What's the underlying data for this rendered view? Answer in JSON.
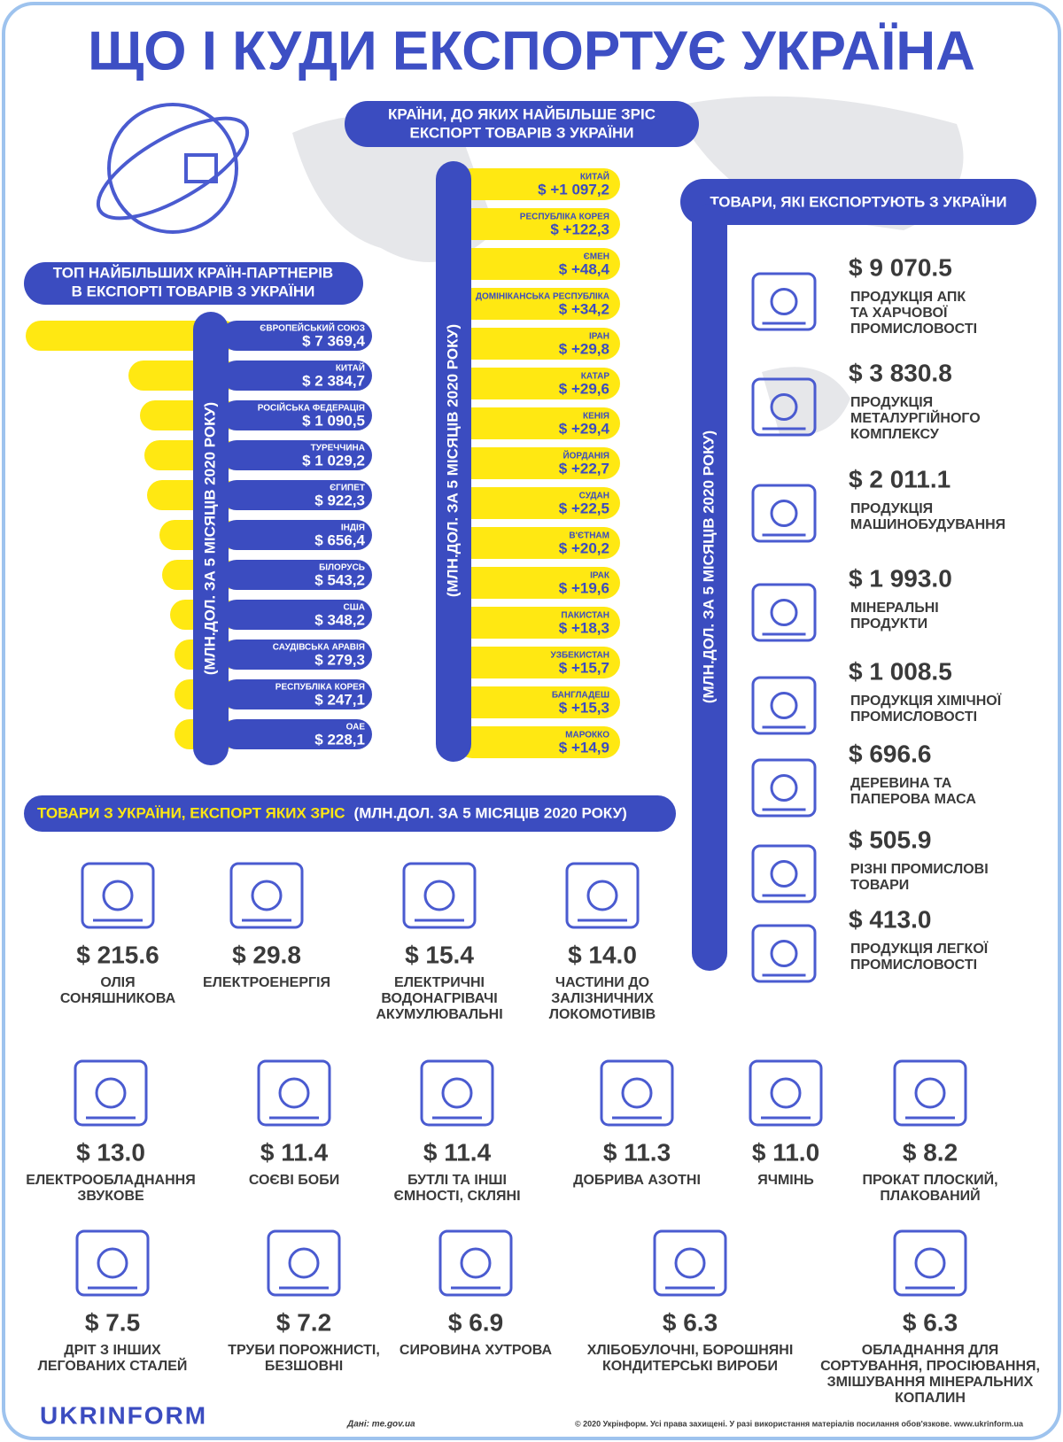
{
  "title": "ЩО І КУДИ ЕКСПОРТУЄ УКРАЇНА",
  "partners": {
    "heading": [
      "ТОП НАЙБІЛЬШИХ КРАЇН-ПАРТНЕРІВ",
      "В ЕКСПОРТІ ТОВАРІВ З УКРАЇНИ"
    ],
    "unit": "(МЛН.ДОЛ. ЗА 5 МІСЯЦІВ 2020 РОКУ)",
    "rows": [
      {
        "country": "ЄВРОПЕЙСЬКИЙ СОЮЗ",
        "value": "$ 7 369,4"
      },
      {
        "country": "КИТАЙ",
        "value": "$ 2 384,7"
      },
      {
        "country": "РОСІЙСЬКА ФЕДЕРАЦІЯ",
        "value": "$ 1 090,5"
      },
      {
        "country": "ТУРЕЧЧИНА",
        "value": "$ 1 029,2"
      },
      {
        "country": "ЄГИПЕТ",
        "value": "$ 922,3"
      },
      {
        "country": "ІНДІЯ",
        "value": "$ 656,4"
      },
      {
        "country": "БІЛОРУСЬ",
        "value": "$ 543,2"
      },
      {
        "country": "США",
        "value": "$ 348,2"
      },
      {
        "country": "САУДІВСЬКА АРАВІЯ",
        "value": "$ 279,3"
      },
      {
        "country": "РЕСПУБЛІКА КОРЕЯ",
        "value": "$ 247,1"
      },
      {
        "country": "ОАЕ",
        "value": "$ 228,1"
      }
    ]
  },
  "growth_countries": {
    "heading": [
      "КРАЇНИ, ДО ЯКИХ НАЙБІЛЬШЕ ЗРІС",
      "ЕКСПОРТ ТОВАРІВ З УКРАЇНИ"
    ],
    "unit": "(МЛН.ДОЛ. ЗА 5 МІСЯЦІВ 2020 РОКУ)",
    "rows": [
      {
        "country": "КИТАЙ",
        "value": "$ +1 097,2"
      },
      {
        "country": "РЕСПУБЛІКА КОРЕЯ",
        "value": "$ +122,3"
      },
      {
        "country": "ЄМЕН",
        "value": "$ +48,4"
      },
      {
        "country": "ДОМІНІКАНСЬКА РЕСПУБЛІКА",
        "value": "$ +34,2"
      },
      {
        "country": "ІРАН",
        "value": "$ +29,8"
      },
      {
        "country": "КАТАР",
        "value": "$ +29,6"
      },
      {
        "country": "КЕНІЯ",
        "value": "$ +29,4"
      },
      {
        "country": "ЙОРДАНІЯ",
        "value": "$ +22,7"
      },
      {
        "country": "СУДАН",
        "value": "$ +22,5"
      },
      {
        "country": "В'ЄТНАМ",
        "value": "$ +20,2"
      },
      {
        "country": "ІРАК",
        "value": "$ +19,6"
      },
      {
        "country": "ПАКИСТАН",
        "value": "$ +18,3"
      },
      {
        "country": "УЗБЕКИСТАН",
        "value": "$ +15,7"
      },
      {
        "country": "БАНГЛАДЕШ",
        "value": "$ +15,3"
      },
      {
        "country": "МАРОККО",
        "value": "$ +14,9"
      }
    ]
  },
  "goods": {
    "heading": "ТОВАРИ, ЯКІ ЕКСПОРТУЮТЬ З УКРАЇНИ",
    "unit": "(МЛН.ДОЛ. ЗА 5 МІСЯЦІВ 2020 РОКУ)",
    "items": [
      {
        "value": "$ 9 070.5",
        "label": [
          "ПРОДУКЦІЯ АПК",
          "ТА ХАРЧОВОЇ",
          "ПРОМИСЛОВОСТІ"
        ]
      },
      {
        "value": "$ 3 830.8",
        "label": [
          "ПРОДУКЦІЯ",
          "МЕТАЛУРГІЙНОГО",
          "КОМПЛЕКСУ"
        ]
      },
      {
        "value": "$ 2 011.1",
        "label": [
          "ПРОДУКЦІЯ",
          "МАШИНОБУДУВАННЯ"
        ]
      },
      {
        "value": "$ 1 993.0",
        "label": [
          "МІНЕРАЛЬНІ",
          "ПРОДУКТИ"
        ]
      },
      {
        "value": "$ 1 008.5",
        "label": [
          "ПРОДУКЦІЯ ХІМІЧНОЇ",
          "ПРОМИСЛОВОСТІ"
        ]
      },
      {
        "value": "$ 696.6",
        "label": [
          "ДЕРЕВИНА ТА",
          "ПАПЕРОВА МАСА"
        ]
      },
      {
        "value": "$ 505.9",
        "label": [
          "РІЗНІ ПРОМИСЛОВІ",
          "ТОВАРИ"
        ]
      },
      {
        "value": "$ 413.0",
        "label": [
          "ПРОДУКЦІЯ ЛЕГКОЇ",
          "ПРОМИСЛОВОСТІ"
        ]
      }
    ]
  },
  "growth_goods": {
    "heading": "ТОВАРИ З УКРАЇНИ, ЕКСПОРТ ЯКИХ ЗРІС",
    "unit": "(МЛН.ДОЛ. ЗА 5 МІСЯЦІВ 2020 РОКУ)",
    "items": [
      {
        "value": "$ 215.6",
        "label": [
          "ОЛІЯ",
          "СОНЯШНИКОВА"
        ]
      },
      {
        "value": "$ 29.8",
        "label": [
          "ЕЛЕКТРОЕНЕРГІЯ"
        ]
      },
      {
        "value": "$ 15.4",
        "label": [
          "ЕЛЕКТРИЧНІ",
          "ВОДОНАГРІВАЧІ",
          "АКУМУЛЮВАЛЬНІ"
        ]
      },
      {
        "value": "$ 14.0",
        "label": [
          "ЧАСТИНИ ДО",
          "ЗАЛІЗНИЧНИХ",
          "ЛОКОМОТИВІВ"
        ]
      },
      {
        "value": "$ 13.0",
        "label": [
          "ЕЛЕКТРООБЛАДНАННЯ",
          "ЗВУКОВЕ"
        ]
      },
      {
        "value": "$ 11.4",
        "label": [
          "СОЄВІ БОБИ"
        ]
      },
      {
        "value": "$ 11.4",
        "label": [
          "БУТЛІ ТА ІНШІ",
          "ЄМНОСТІ, СКЛЯНІ"
        ]
      },
      {
        "value": "$ 11.3",
        "label": [
          "ДОБРИВА АЗОТНІ"
        ]
      },
      {
        "value": "$ 11.0",
        "label": [
          "ЯЧМІНЬ"
        ]
      },
      {
        "value": "$ 8.2",
        "label": [
          "ПРОКАТ ПЛОСКИЙ,",
          "ПЛАКОВАНИЙ"
        ]
      },
      {
        "value": "$ 7.5",
        "label": [
          "ДРІТ З ІНШИХ",
          "ЛЕГОВАНИХ СТАЛЕЙ"
        ]
      },
      {
        "value": "$ 7.2",
        "label": [
          "ТРУБИ ПОРОЖНИСТІ,",
          "БЕЗШОВНІ"
        ]
      },
      {
        "value": "$ 6.9",
        "label": [
          "СИРОВИНА ХУТРОВА"
        ]
      },
      {
        "value": "$ 6.3",
        "label": [
          "ХЛІБОБУЛОЧНІ, БОРОШНЯНІ",
          "КОНДИТЕРСЬКІ ВИРОБИ"
        ]
      },
      {
        "value": "$ 6.3",
        "label": [
          "ОБЛАДНАННЯ ДЛЯ",
          "СОРТУВАННЯ, ПРОСІЮВАННЯ,",
          "ЗМІШУВАННЯ МІНЕРАЛЬНИХ",
          "КОПАЛИН"
        ]
      }
    ]
  },
  "footer": {
    "logo": "UKRINFORM",
    "source": "Дані: me.gov.ua",
    "copyright": "© 2020 Укрінформ. Усі права захищені. У разі використання матеріалів посилання обов'язкове. www.ukrinform.ua"
  }
}
